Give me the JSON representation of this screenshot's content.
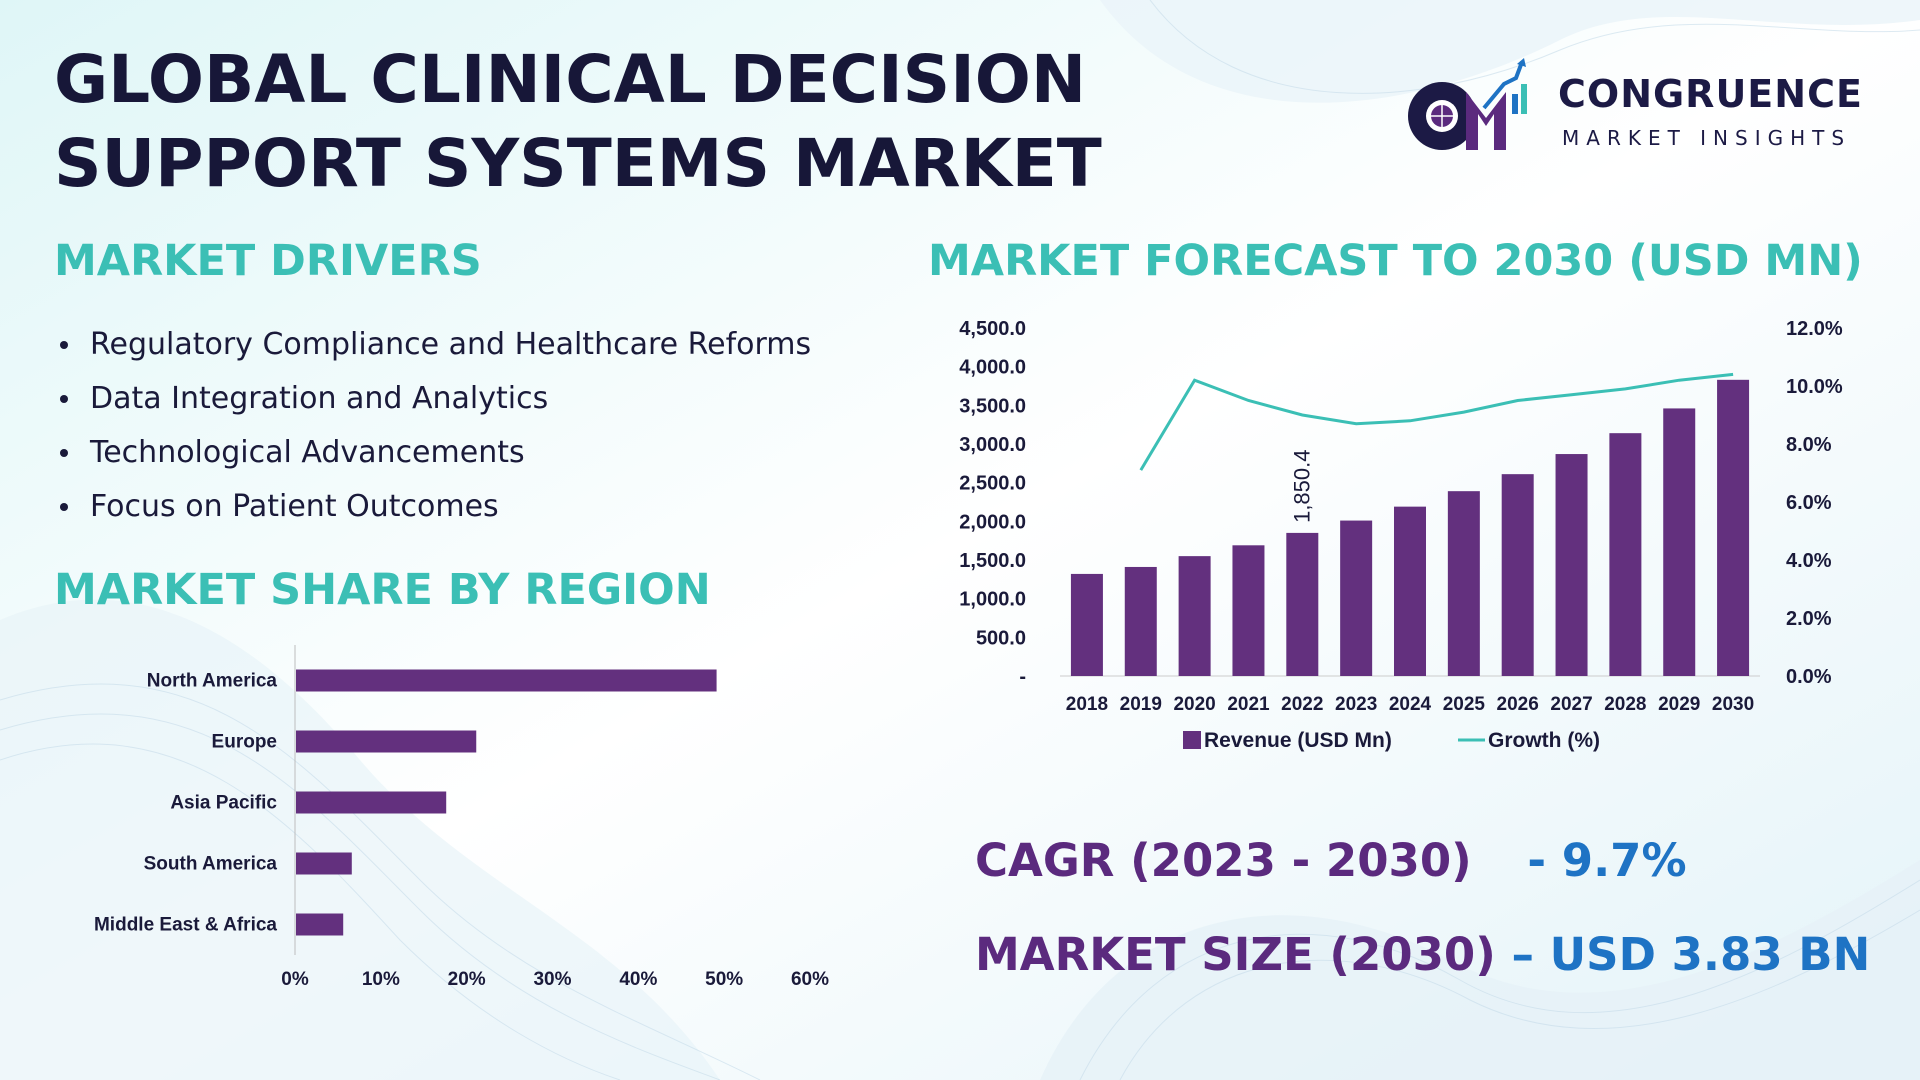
{
  "header": {
    "title_line1": "GLOBAL CLINICAL DECISION",
    "title_line2": "SUPPORT SYSTEMS MARKET",
    "logo_brand": "CONGRUENCE",
    "logo_sub": "MARKET INSIGHTS"
  },
  "drivers": {
    "heading": "MARKET DRIVERS",
    "items": [
      "Regulatory Compliance and Healthcare Reforms",
      "Data Integration and Analytics",
      "Technological Advancements",
      "Focus on Patient Outcomes"
    ]
  },
  "region": {
    "heading": "MARKET SHARE BY REGION"
  },
  "forecast": {
    "heading": "MARKET FORECAST TO 2030 (USD MN)"
  },
  "kpis": {
    "cagr_label": "CAGR (2023 - 2030)",
    "cagr_value": "- 9.7%",
    "size_label": "MARKET SIZE (2030)",
    "size_value": "– USD 3.83 BN"
  },
  "colors": {
    "bar": "#63307e",
    "line": "#3bbfb5",
    "heading": "#3bbfb5",
    "kpi_label": "#5b2a7e",
    "kpi_value": "#1e73c4"
  },
  "chart_data": [
    {
      "type": "bar",
      "orientation": "horizontal",
      "categories": [
        "North America",
        "Europe",
        "Asia Pacific",
        "South America",
        "Middle East & Africa"
      ],
      "values": [
        49,
        21,
        17.5,
        6.5,
        5.5
      ],
      "xlim": [
        0,
        60
      ],
      "x_ticks": [
        "0%",
        "10%",
        "20%",
        "30%",
        "40%",
        "50%",
        "60%"
      ],
      "title": "MARKET SHARE BY REGION"
    },
    {
      "type": "bar",
      "title": "MARKET FORECAST TO 2030 (USD MN)",
      "categories": [
        "2018",
        "2019",
        "2020",
        "2021",
        "2022",
        "2023",
        "2024",
        "2025",
        "2026",
        "2027",
        "2028",
        "2029",
        "2030"
      ],
      "series": [
        {
          "name": "Revenue (USD Mn)",
          "type": "bar",
          "axis": "left",
          "values": [
            1320,
            1410,
            1550,
            1690,
            1850.4,
            2010,
            2190,
            2390,
            2610,
            2870,
            3140,
            3460,
            3830
          ]
        },
        {
          "name": "Growth (%)",
          "type": "line",
          "axis": "right",
          "values": [
            null,
            7.1,
            10.2,
            9.5,
            9.0,
            8.7,
            8.8,
            9.1,
            9.5,
            9.7,
            9.9,
            10.2,
            10.4
          ]
        }
      ],
      "data_labels": [
        {
          "category": "2022",
          "label": "1,850.4"
        }
      ],
      "ylim_left": [
        0,
        4500
      ],
      "y_ticks_left": [
        "-",
        "500.0",
        "1,000.0",
        "1,500.0",
        "2,000.0",
        "2,500.0",
        "3,000.0",
        "3,500.0",
        "4,000.0",
        "4,500.0"
      ],
      "ylim_right": [
        0,
        12
      ],
      "y_ticks_right": [
        "0.0%",
        "2.0%",
        "4.0%",
        "6.0%",
        "8.0%",
        "10.0%",
        "12.0%"
      ],
      "legend": "bottom"
    }
  ]
}
